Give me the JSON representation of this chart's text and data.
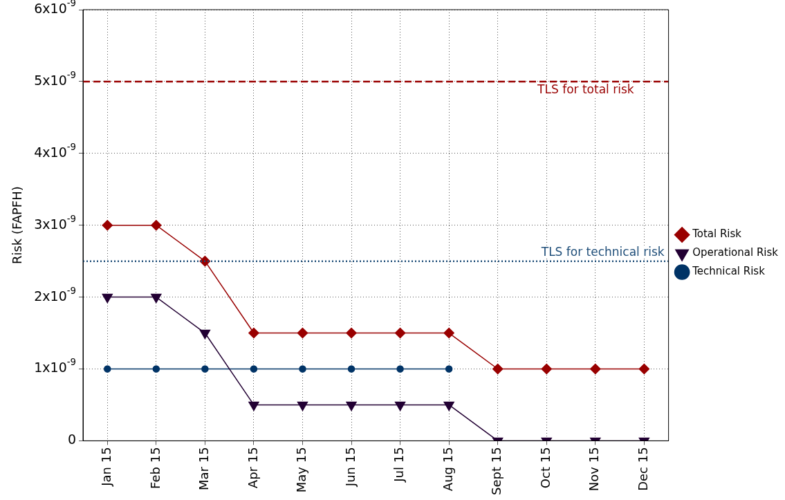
{
  "chart_data": {
    "type": "line",
    "ylabel": "Risk (FAPFH)",
    "categories": [
      "Jan 15",
      "Feb 15",
      "Mar 15",
      "Apr 15",
      "May 15",
      "Jun 15",
      "Jul 15",
      "Aug 15",
      "Sept 15",
      "Oct 15",
      "Nov 15",
      "Dec 15"
    ],
    "series": [
      {
        "name": "Total Risk",
        "color": "#990000",
        "marker": "diamond",
        "values": [
          3e-09,
          3e-09,
          2.5e-09,
          1.5e-09,
          1.5e-09,
          1.5e-09,
          1.5e-09,
          1.5e-09,
          1e-09,
          1e-09,
          1e-09,
          1e-09
        ]
      },
      {
        "name": "Operational Risk",
        "color": "#220033",
        "marker": "triangle",
        "values": [
          2e-09,
          2e-09,
          1.5e-09,
          5e-10,
          5e-10,
          5e-10,
          5e-10,
          5e-10,
          0,
          0,
          0,
          0
        ]
      },
      {
        "name": "Technical Risk",
        "color": "#003366",
        "marker": "circle",
        "values": [
          1e-09,
          1e-09,
          1e-09,
          1e-09,
          1e-09,
          1e-09,
          1e-09,
          1e-09,
          null,
          null,
          null,
          null
        ]
      }
    ],
    "ylim": [
      0,
      6e-09
    ],
    "yticks": [
      0,
      {
        "value": 1e-09,
        "label": "1x10$^{-9}$"
      },
      {
        "value": 2e-09,
        "label": "2x10$^{-9}$"
      },
      {
        "value": 3e-09,
        "label": "3x10$^{-9}$"
      },
      {
        "value": 4e-09,
        "label": "4x10$^{-9}$"
      },
      {
        "value": 5e-09,
        "label": "5x10$^{-9}$"
      },
      {
        "value": 6e-09,
        "label": "6x10$^{-9}$"
      }
    ],
    "ref_lines": [
      {
        "axis": "y",
        "value": 5e-09,
        "label": "TLS for total risk",
        "color": "#990000",
        "line_style": "dashed"
      },
      {
        "axis": "y",
        "value": 2.5e-09,
        "label": "TLS for technical risk",
        "color": "#1f4e79",
        "line_style": "dotted"
      }
    ],
    "grid": true,
    "legend": "right"
  }
}
